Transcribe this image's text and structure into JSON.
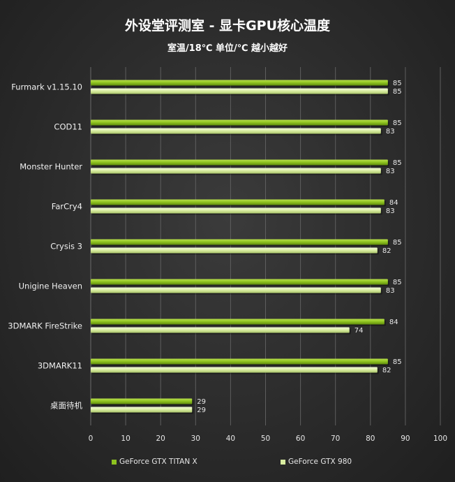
{
  "chart_data": {
    "type": "bar",
    "orientation": "horizontal",
    "title": "外设堂评测室 -  显卡GPU核心温度",
    "subtitle": "室温/18℃   单位/℃   越小越好",
    "categories": [
      "Furmark v1.15.10",
      "COD11",
      "Monster Hunter",
      "FarCry4",
      "Crysis 3",
      "Unigine Heaven",
      "3DMARK FireStrike",
      "3DMARK11",
      "桌面待机"
    ],
    "series": [
      {
        "name": "GeForce GTX TITAN X",
        "color": "#8dc21f",
        "values": [
          85,
          85,
          85,
          84,
          85,
          85,
          84,
          85,
          29
        ]
      },
      {
        "name": "GeForce GTX 980",
        "color": "#d8eca0",
        "values": [
          85,
          83,
          83,
          83,
          82,
          83,
          74,
          82,
          29
        ]
      }
    ],
    "xlim": [
      0,
      100
    ],
    "xticks": [
      "0",
      "10",
      "20",
      "30",
      "40",
      "50",
      "60",
      "70",
      "80",
      "90",
      "100"
    ],
    "grid": true,
    "legend_position": "bottom"
  }
}
